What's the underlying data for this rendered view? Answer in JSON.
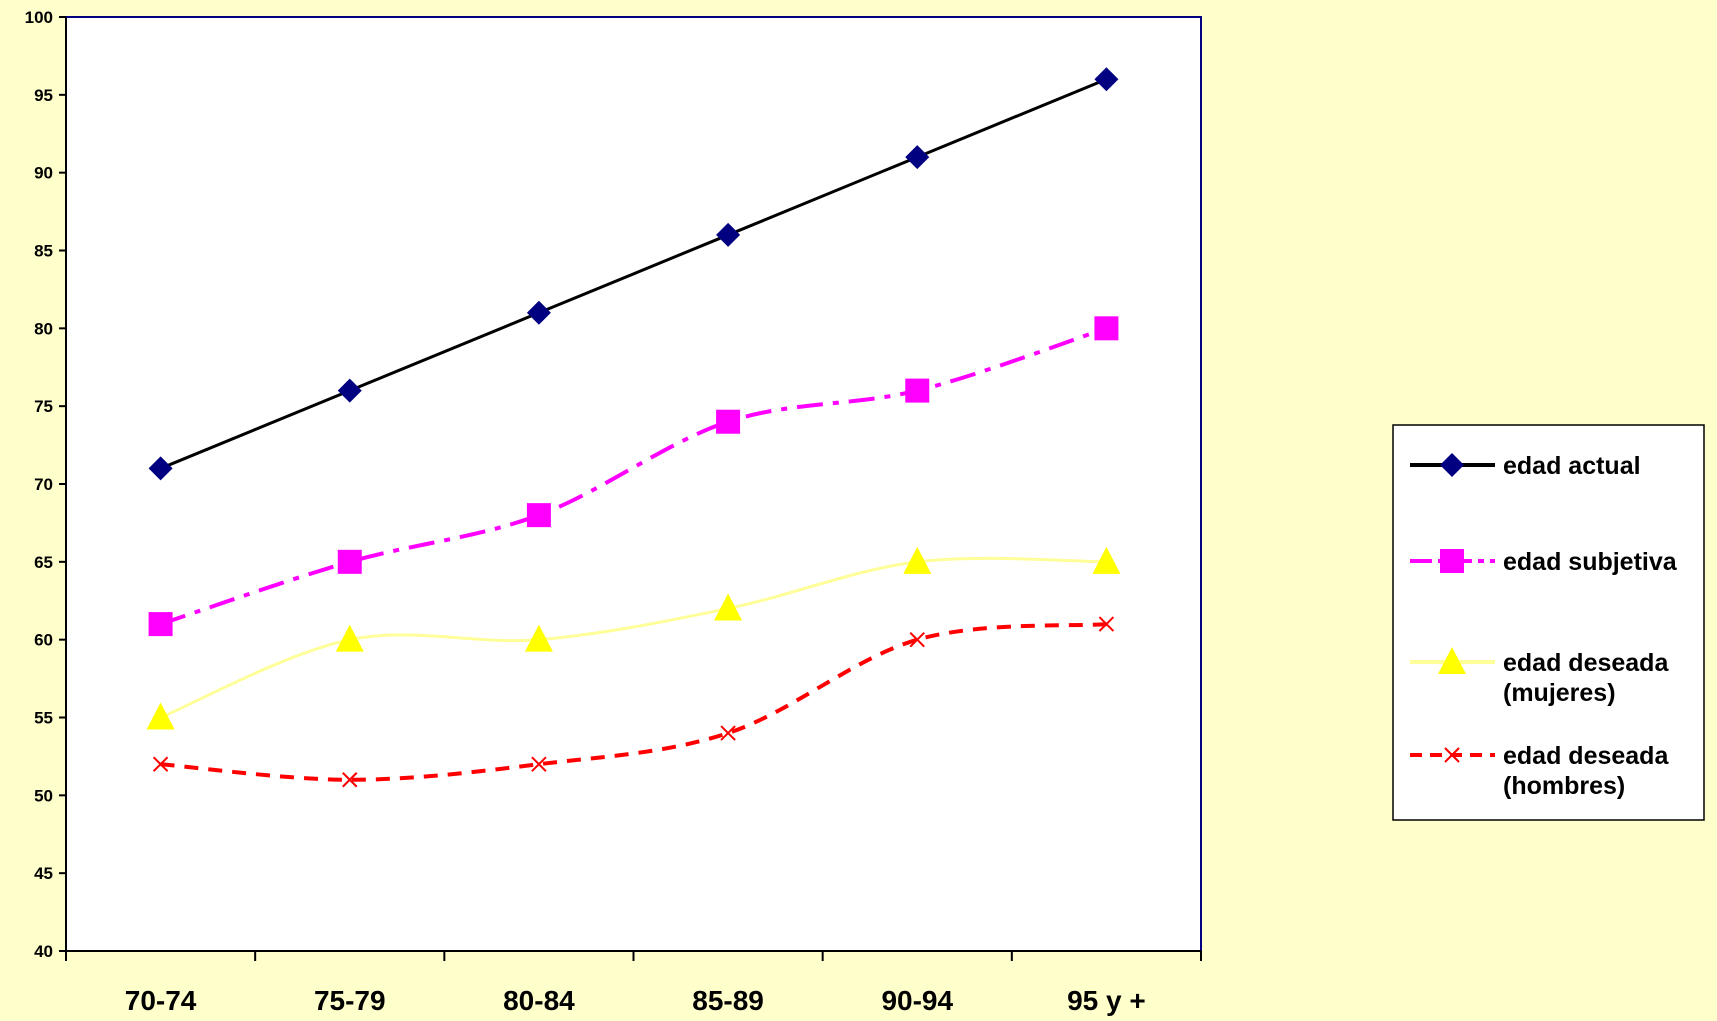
{
  "chart_data": {
    "type": "line",
    "categories": [
      "70-74",
      "75-79",
      "80-84",
      "85-89",
      "90-94",
      "95 y +"
    ],
    "ylim": [
      40,
      100
    ],
    "yticks": [
      "40",
      "45",
      "50",
      "55",
      "60",
      "65",
      "70",
      "75",
      "80",
      "85",
      "90",
      "95",
      "100"
    ],
    "grid": false,
    "legend_position": "right",
    "series": [
      {
        "name": "edad actual",
        "values": [
          71,
          76,
          81,
          86,
          91,
          96
        ],
        "color": "#000000",
        "marker_color": "#000080",
        "marker": "diamond",
        "line_style": "solid",
        "smooth": false
      },
      {
        "name": "edad subjetiva",
        "values": [
          61,
          65,
          68,
          74,
          76,
          80
        ],
        "color": "#ff00ff",
        "marker_color": "#ff00ff",
        "marker": "square",
        "line_style": "dash-dot",
        "smooth": true
      },
      {
        "name": "edad deseada (mujeres)",
        "legend_lines": [
          "edad deseada",
          "(mujeres)"
        ],
        "values": [
          55,
          60,
          60,
          62,
          65,
          65
        ],
        "color": "#ffff99",
        "marker_color": "#ffff00",
        "marker": "triangle",
        "line_style": "solid",
        "smooth": true
      },
      {
        "name": "edad deseada (hombres)",
        "legend_lines": [
          "edad deseada",
          "(hombres)"
        ],
        "values": [
          52,
          51,
          52,
          54,
          60,
          61
        ],
        "color": "#ff0000",
        "marker_color": "#ff0000",
        "marker": "x",
        "line_style": "dashed",
        "smooth": true
      }
    ]
  }
}
